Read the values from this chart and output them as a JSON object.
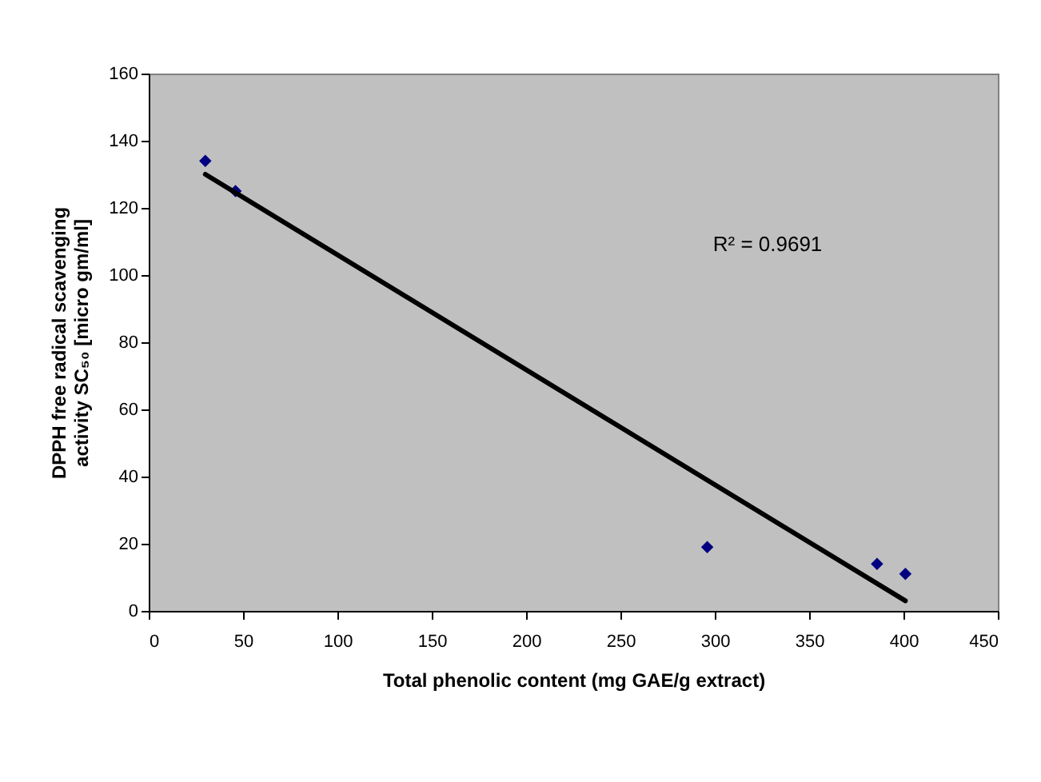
{
  "chart_data": {
    "type": "scatter",
    "xlabel": "Total phenolic content (mg GAE/g extract)",
    "ylabel": "DPPH free radical scavenging\nactivity SC₅₀ [micro gm/ml]",
    "xlim": [
      0,
      450
    ],
    "xticks": [
      0,
      50,
      100,
      150,
      200,
      250,
      300,
      350,
      400,
      450
    ],
    "ylim": [
      0,
      160
    ],
    "yticks": [
      0,
      20,
      40,
      60,
      80,
      100,
      120,
      140,
      160
    ],
    "grid": false,
    "marker": "diamond",
    "series": [
      {
        "color": "#000080",
        "x": [
          30,
          46,
          296,
          386,
          401
        ],
        "values": [
          134,
          125,
          19,
          14,
          11
        ]
      },
      {
        "type": "line",
        "color": "#000000",
        "x": [
          30,
          401
        ],
        "values": [
          130,
          3
        ],
        "line_style": "solid",
        "marker": "none"
      }
    ],
    "annotations": [
      "R² = 0.9691"
    ]
  }
}
